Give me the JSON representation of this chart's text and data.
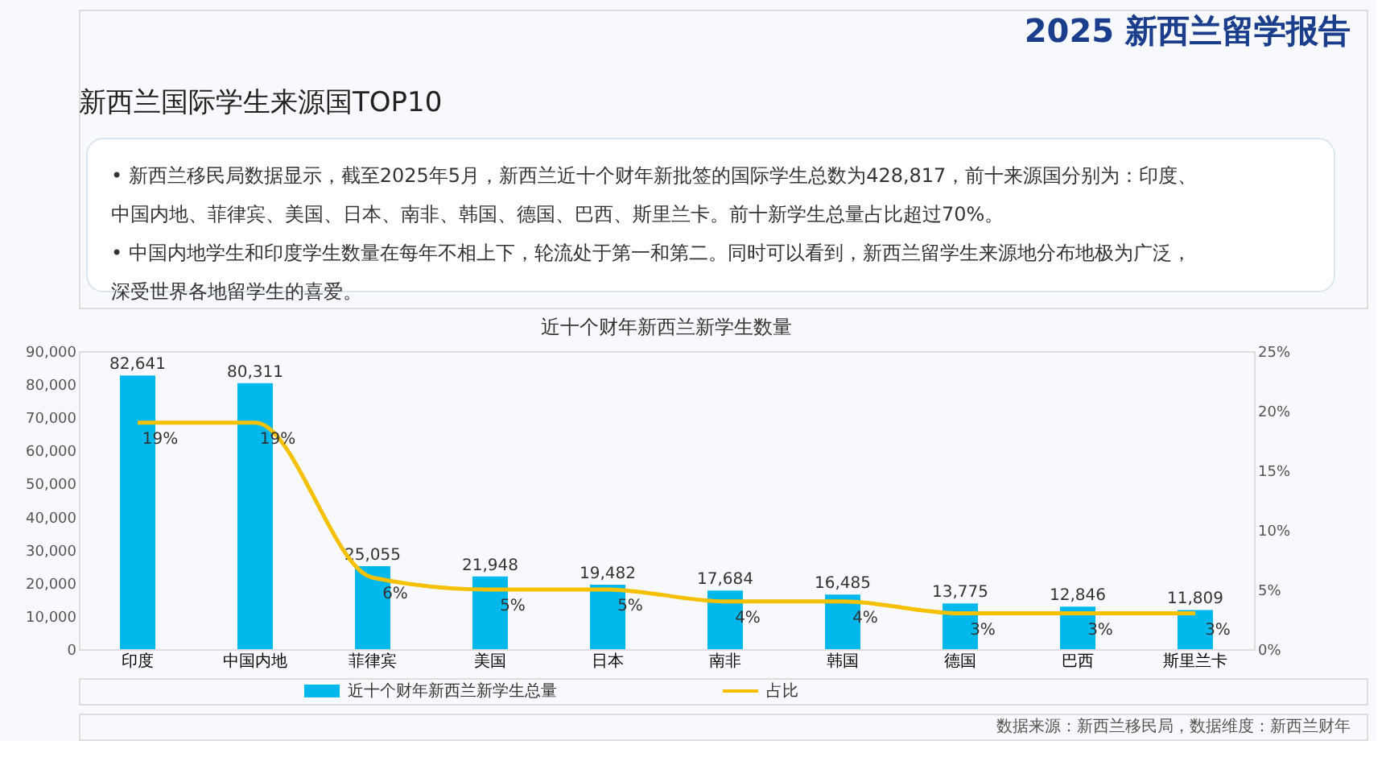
{
  "chart_data": {
    "type": "bar",
    "title": "近十个财年新西兰新学生数量",
    "annotations": [
      "2025 新西兰留学报告",
      "新西兰国际学生来源国TOP10",
      "•   新西兰移民局数据显示，截至2025年5月，新西兰近十个财年新批签的国际学生总数为428,817，前十来源国分别为：印度、",
      "     中国内地、菲律宾、美国、日本、南非、韩国、德国、巴西、斯里兰卡。前十新学生总量占比超过70%。",
      "•   中国内地学生和印度学生数量在每年不相上下，轮流处于第一和第二。同时可以看到，新西兰留学生来源地分布地极为广泛，",
      "     深受世界各地留学生的喜爱。",
      "数据来源：新西兰移民局，数据维度：新西兰财年"
    ],
    "categories": [
      "印度",
      "中国内地",
      "菲律宾",
      "美国",
      "日本",
      "南非",
      "韩国",
      "德国",
      "巴西",
      "斯里兰卡"
    ],
    "series": [
      {
        "name": "近十个财年新西兰新学生总量",
        "color": "#00b8ec",
        "values": [
          82641,
          80311,
          25055,
          21948,
          19482,
          17684,
          16485,
          13775,
          12846,
          11809
        ],
        "value_labels": [
          "82,641",
          "80,311",
          "25,055",
          "21,948",
          "19,482",
          "17,684",
          "16,485",
          "13,775",
          "12,846",
          "11,809"
        ]
      },
      {
        "name": "占比",
        "type": "line",
        "axis": "y2",
        "color": "#f5c000",
        "values": [
          19,
          19,
          6,
          5,
          5,
          4,
          4,
          3,
          3,
          3
        ],
        "value_labels": [
          "19%",
          "19%",
          "6%",
          "5%",
          "5%",
          "4%",
          "4%",
          "3%",
          "3%",
          "3%"
        ]
      }
    ],
    "ylim": [
      0,
      90000
    ],
    "yticks": [
      0,
      {
        "value": 10000,
        "label": "10,000"
      },
      {
        "value": 20000,
        "label": "20,000"
      },
      {
        "value": 30000,
        "label": "30,000"
      },
      {
        "value": 40000,
        "label": "40,000"
      },
      {
        "value": 50000,
        "label": "50,000"
      },
      {
        "value": 60000,
        "label": "60,000"
      },
      {
        "value": 70000,
        "label": "70,000"
      },
      {
        "value": 80000,
        "label": "80,000"
      },
      {
        "value": 90000,
        "label": "90,000"
      }
    ],
    "y2lim": [
      0,
      25
    ],
    "y2ticks": [
      {
        "value": 0,
        "label": "0%"
      },
      {
        "value": 5,
        "label": "5%"
      },
      {
        "value": 10,
        "label": "10%"
      },
      {
        "value": 15,
        "label": "15%"
      },
      {
        "value": 20,
        "label": "20%"
      },
      {
        "value": 25,
        "label": "25%"
      }
    ],
    "grid": false,
    "legend": "bottom",
    "marker": "none",
    "line_style": "solid"
  }
}
